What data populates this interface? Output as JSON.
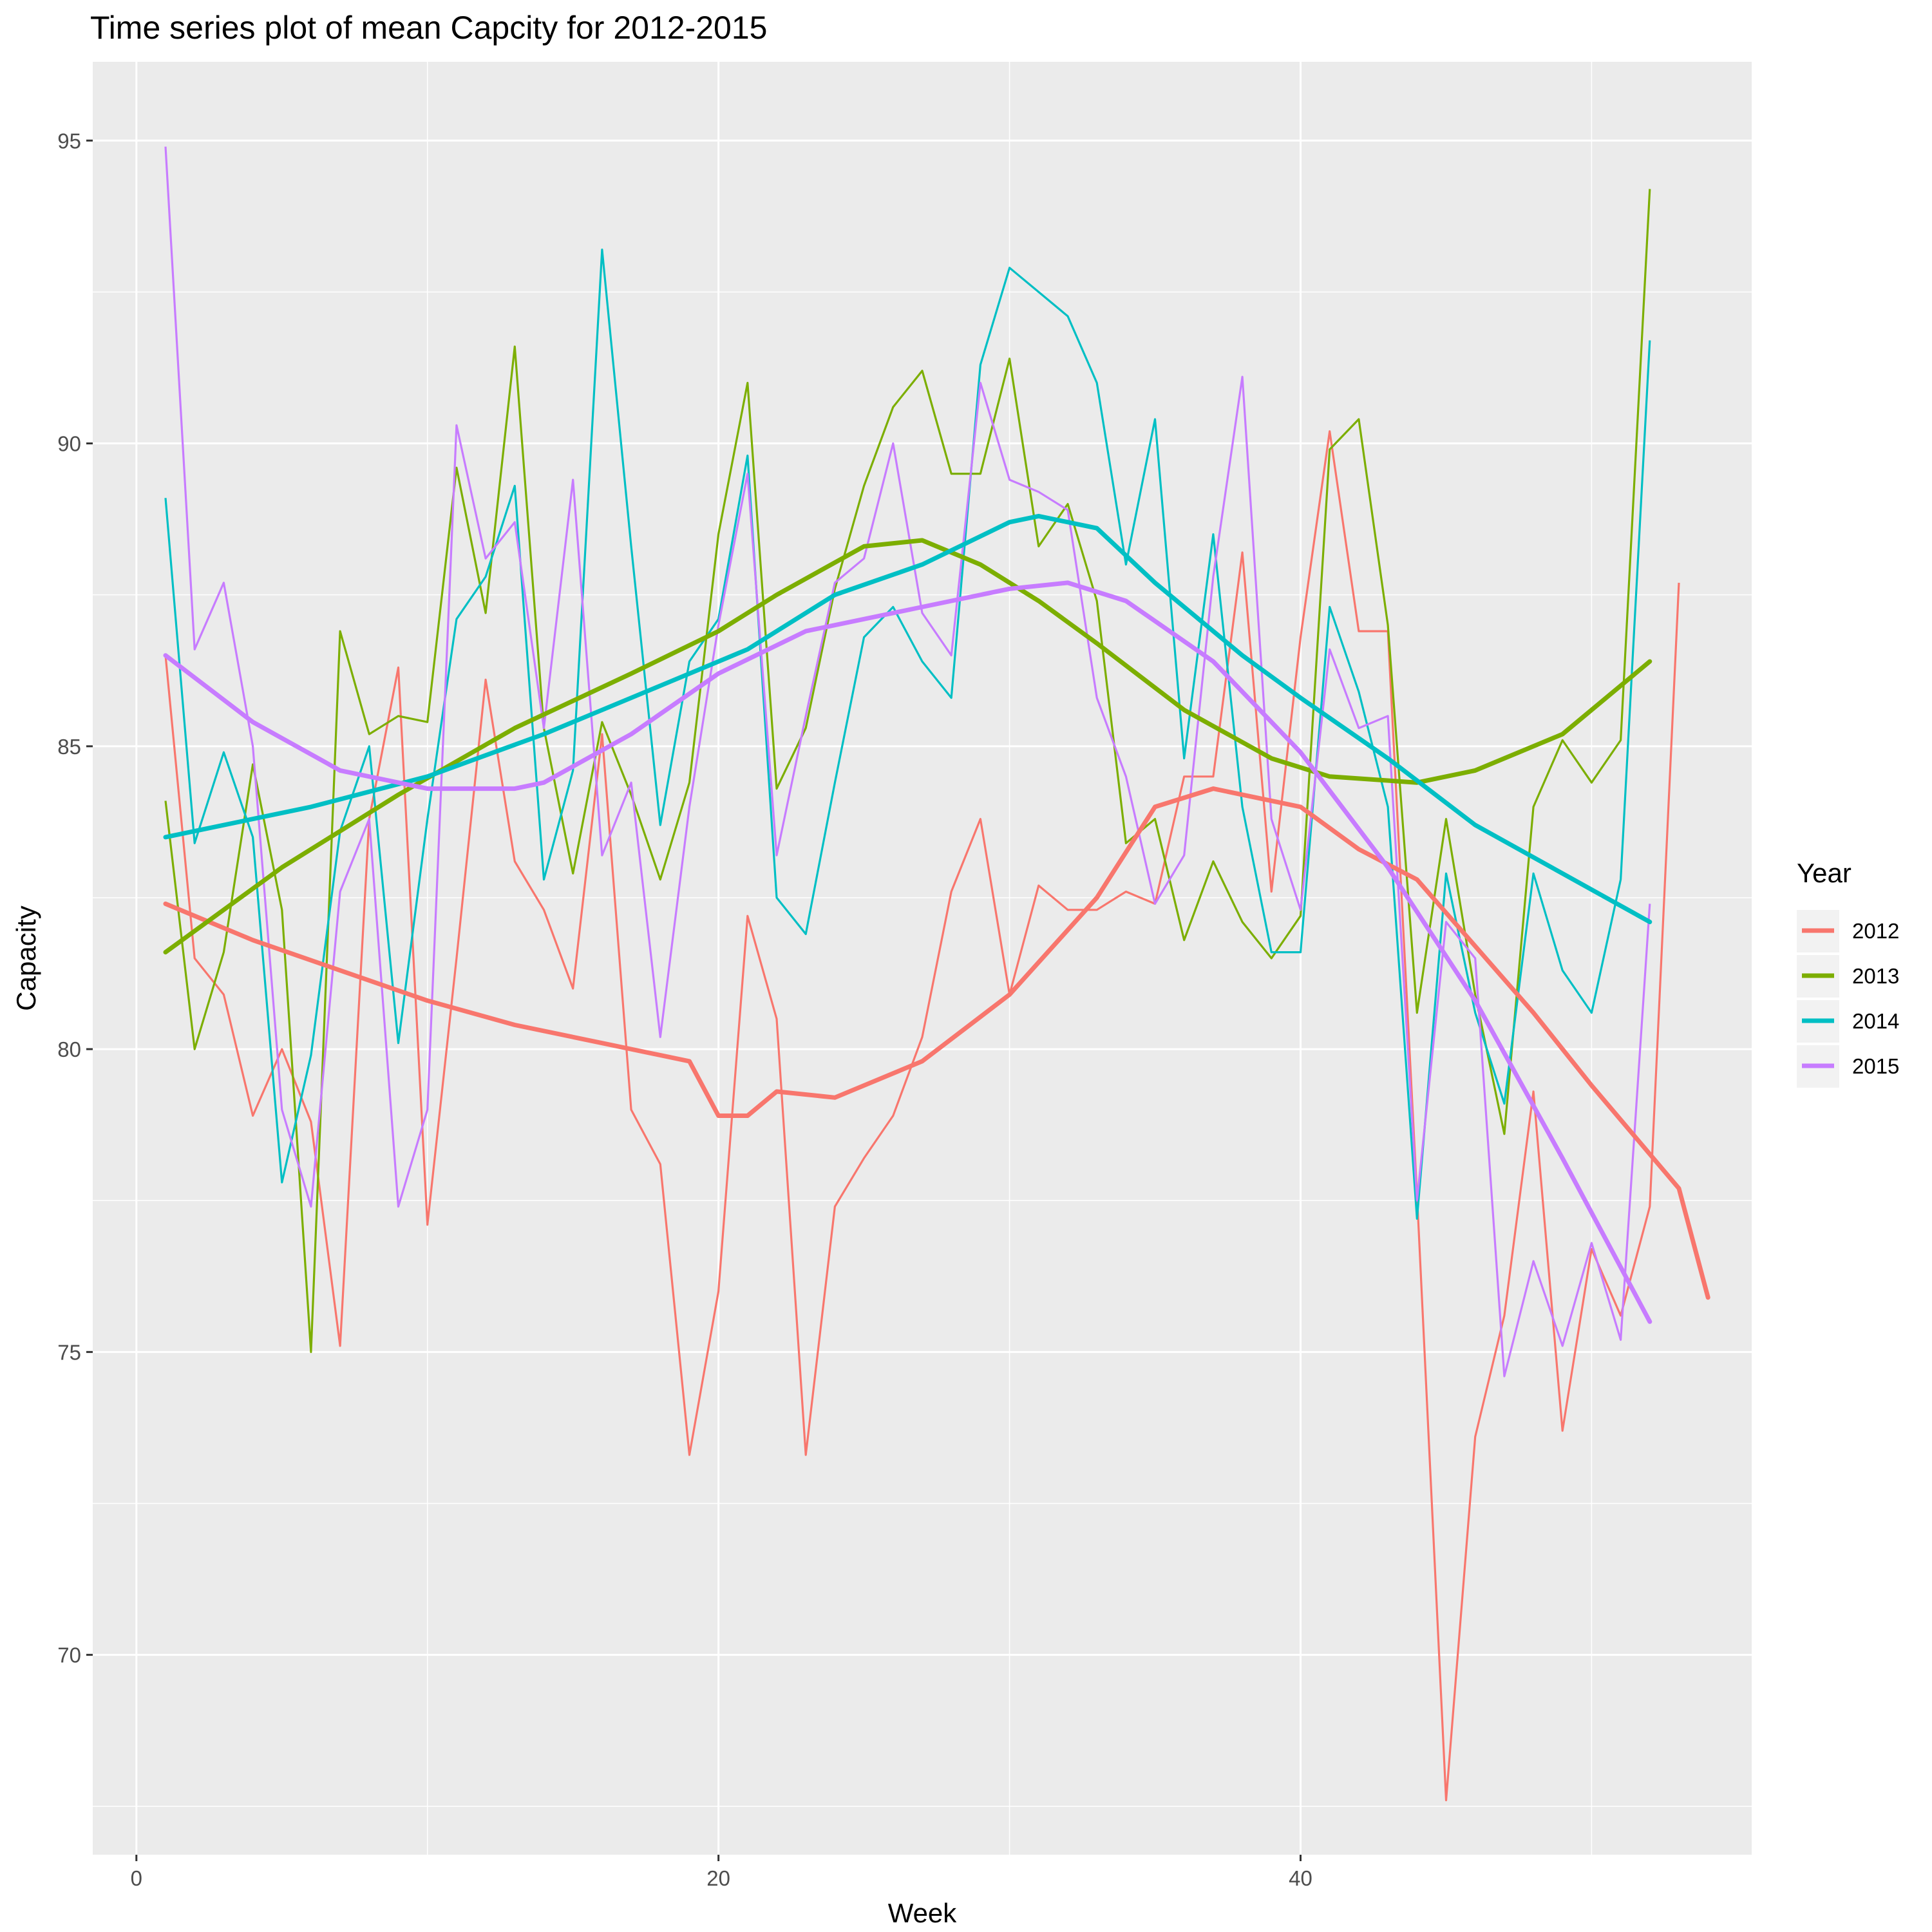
{
  "chart_data": {
    "type": "line",
    "title": "Time series plot of mean Capcity for 2012-2015",
    "xlabel": "Week",
    "ylabel": "Capacity",
    "xlim": [
      -1.5,
      55.5
    ],
    "ylim": [
      66.7,
      96.3
    ],
    "x_ticks": [
      0,
      20,
      40
    ],
    "x_tick_labels": [
      "0",
      "20",
      "40"
    ],
    "y_ticks": [
      70,
      75,
      80,
      85,
      90,
      95
    ],
    "y_tick_labels": [
      "70",
      "75",
      "80",
      "85",
      "90",
      "95"
    ],
    "grid": true,
    "legend": {
      "title": "Year",
      "placement": "right"
    },
    "series": [
      {
        "name": "2012",
        "color": "#F8766D",
        "x": [
          1,
          2,
          3,
          4,
          5,
          6,
          7,
          8,
          9,
          10,
          11,
          12,
          13,
          14,
          15,
          16,
          17,
          18,
          19,
          20,
          21,
          22,
          23,
          24,
          25,
          26,
          27,
          28,
          29,
          30,
          31,
          32,
          33,
          34,
          35,
          36,
          37,
          38,
          39,
          40,
          41,
          42,
          43,
          44,
          45,
          46,
          47,
          48,
          49,
          50,
          51,
          52,
          53
        ],
        "values": [
          86.5,
          81.5,
          80.9,
          78.9,
          80.0,
          78.8,
          75.1,
          83.8,
          86.3,
          77.1,
          81.5,
          86.1,
          83.1,
          82.3,
          81.0,
          85.2,
          79.0,
          78.1,
          73.3,
          76.0,
          82.2,
          80.5,
          73.3,
          77.4,
          78.2,
          78.9,
          80.2,
          82.6,
          83.8,
          80.9,
          82.7,
          82.3,
          82.3,
          82.6,
          82.4,
          84.5,
          84.5,
          88.2,
          82.6,
          86.8,
          90.2,
          86.9,
          86.9,
          77.6,
          67.6,
          73.6,
          75.6,
          79.3,
          73.7,
          76.7,
          75.6,
          77.4,
          87.7
        ],
        "smooth": [
          82.4,
          81.8,
          81.3,
          80.8,
          80.4,
          80.1,
          79.8,
          79.3,
          78.9,
          78.9,
          79.2,
          79.8,
          80.9,
          82.5,
          84.0,
          84.3,
          84.0,
          83.3,
          82.8,
          81.7,
          80.6,
          79.4,
          77.7,
          75.9
        ],
        "smooth_x": [
          1,
          4,
          7,
          10,
          13,
          16,
          19,
          22,
          20,
          21,
          24,
          27,
          30,
          33,
          35,
          37,
          40,
          42,
          44,
          46,
          48,
          50,
          53,
          54
        ]
      },
      {
        "name": "2013",
        "color": "#7CAE00",
        "x": [
          1,
          2,
          3,
          4,
          5,
          6,
          7,
          8,
          9,
          10,
          11,
          12,
          13,
          14,
          15,
          16,
          17,
          18,
          19,
          20,
          21,
          22,
          23,
          24,
          25,
          26,
          27,
          28,
          29,
          30,
          31,
          32,
          33,
          34,
          35,
          36,
          37,
          38,
          39,
          40,
          41,
          42,
          43,
          44,
          45,
          46,
          47,
          48,
          49,
          50,
          51,
          52
        ],
        "values": [
          84.1,
          80.0,
          81.6,
          84.7,
          82.3,
          75.0,
          86.9,
          85.2,
          85.5,
          85.4,
          89.6,
          87.2,
          91.6,
          85.3,
          82.9,
          85.4,
          84.2,
          82.8,
          84.4,
          88.5,
          91.0,
          84.3,
          85.3,
          87.6,
          89.3,
          90.6,
          91.2,
          89.5,
          89.5,
          91.4,
          88.3,
          89.0,
          87.4,
          83.4,
          83.8,
          81.8,
          83.1,
          82.1,
          81.5,
          82.2,
          89.9,
          90.4,
          87.0,
          80.6,
          83.8,
          80.9,
          78.6,
          84.0,
          85.1,
          84.4,
          85.1,
          94.2
        ],
        "smooth": [
          81.6,
          83.0,
          84.2,
          85.3,
          86.2,
          86.9,
          87.5,
          88.3,
          88.4,
          88.0,
          87.4,
          86.7,
          85.6,
          84.8,
          84.5,
          84.4,
          84.6,
          85.2,
          86.4
        ],
        "smooth_x": [
          1,
          5,
          9,
          13,
          17,
          20,
          22,
          25,
          27,
          29,
          31,
          33,
          36,
          39,
          41,
          44,
          46,
          49,
          52
        ]
      },
      {
        "name": "2014",
        "color": "#00BFC4",
        "x": [
          1,
          2,
          3,
          4,
          5,
          6,
          7,
          8,
          9,
          10,
          11,
          12,
          13,
          14,
          15,
          16,
          17,
          18,
          19,
          20,
          21,
          22,
          23,
          24,
          25,
          26,
          27,
          28,
          29,
          30,
          31,
          32,
          33,
          34,
          35,
          36,
          37,
          38,
          39,
          40,
          41,
          42,
          43,
          44,
          45,
          46,
          47,
          48,
          49,
          50,
          51,
          52
        ],
        "values": [
          89.1,
          83.4,
          84.9,
          83.5,
          77.8,
          79.9,
          83.6,
          85.0,
          80.1,
          83.8,
          87.1,
          87.8,
          89.3,
          82.8,
          84.6,
          93.2,
          88.3,
          83.7,
          86.4,
          87.1,
          89.8,
          82.5,
          81.9,
          84.4,
          86.8,
          87.3,
          86.4,
          85.8,
          91.3,
          92.9,
          92.5,
          92.1,
          91.0,
          88.0,
          90.4,
          84.8,
          88.5,
          84.0,
          81.6,
          81.6,
          87.3,
          85.9,
          84.0,
          77.2,
          82.9,
          80.6,
          79.1,
          82.9,
          81.3,
          80.6,
          82.8,
          91.7
        ],
        "smooth": [
          83.5,
          84.0,
          84.5,
          85.2,
          86.0,
          86.6,
          87.5,
          88.0,
          88.7,
          88.8,
          88.6,
          87.7,
          86.5,
          85.8,
          84.8,
          83.7,
          82.9,
          82.1
        ],
        "smooth_x": [
          1,
          6,
          10,
          14,
          18,
          21,
          24,
          27,
          30,
          31,
          33,
          35,
          38,
          40,
          43,
          46,
          49,
          52
        ]
      },
      {
        "name": "2015",
        "color": "#C77CFF",
        "x": [
          1,
          2,
          3,
          4,
          5,
          6,
          7,
          8,
          9,
          10,
          11,
          12,
          13,
          14,
          15,
          16,
          17,
          18,
          19,
          20,
          21,
          22,
          23,
          24,
          25,
          26,
          27,
          28,
          29,
          30,
          31,
          32,
          33,
          34,
          35,
          36,
          37,
          38,
          39,
          40,
          41,
          42,
          43,
          44,
          45,
          46,
          47,
          48,
          49,
          50,
          51,
          52
        ],
        "values": [
          94.9,
          86.6,
          87.7,
          85.0,
          79.0,
          77.4,
          82.6,
          83.8,
          77.4,
          79.0,
          90.3,
          88.1,
          88.7,
          85.3,
          89.4,
          83.2,
          84.4,
          80.2,
          84.0,
          87.0,
          89.5,
          83.2,
          85.5,
          87.7,
          88.1,
          90.0,
          87.2,
          86.5,
          91.0,
          89.4,
          89.2,
          88.9,
          85.8,
          84.5,
          82.4,
          83.2,
          87.8,
          91.1,
          83.8,
          82.3,
          86.6,
          85.3,
          85.5,
          77.5,
          82.1,
          81.5,
          74.6,
          76.5,
          75.1,
          76.8,
          75.2,
          82.4
        ],
        "smooth": [
          86.5,
          85.4,
          84.6,
          84.3,
          84.3,
          84.4,
          85.2,
          86.2,
          86.9,
          87.3,
          87.6,
          87.7,
          87.4,
          86.4,
          84.9,
          83.0,
          80.8,
          78.2,
          75.5
        ],
        "smooth_x": [
          1,
          4,
          7,
          10,
          13,
          14,
          17,
          20,
          23,
          27,
          30,
          32,
          34,
          37,
          40,
          43,
          46,
          49,
          52
        ]
      }
    ]
  }
}
